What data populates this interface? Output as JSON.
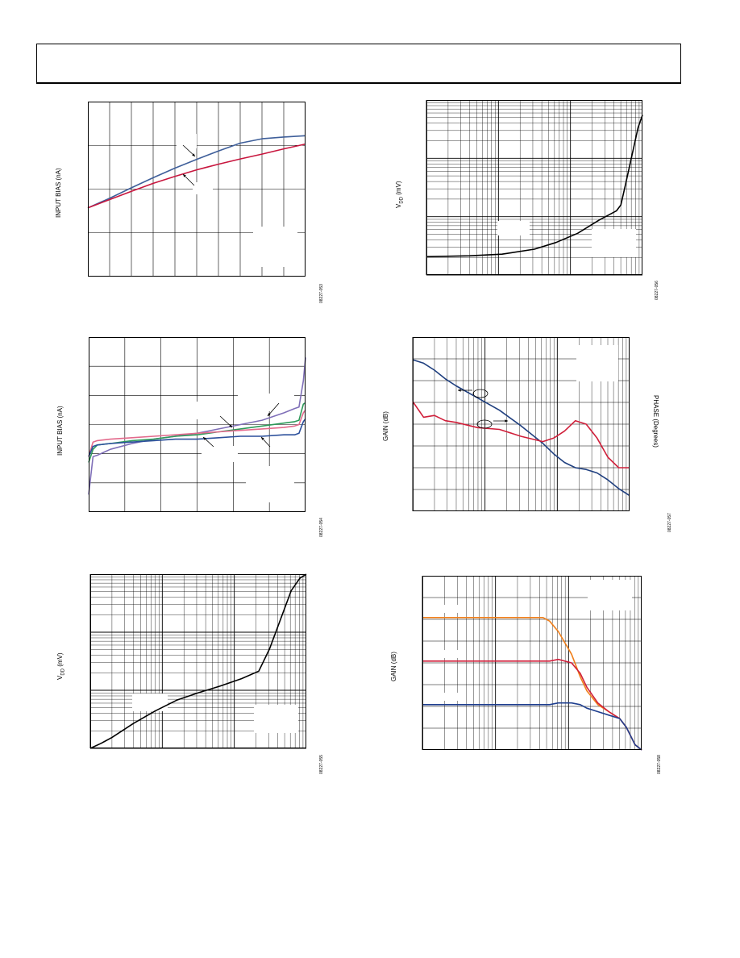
{
  "chart_data": [
    {
      "id": "c1",
      "type": "line",
      "ylabel": "INPUT BIAS (nA)",
      "figure_id": "08227-053",
      "grid": {
        "x_divisions": 10,
        "y_divisions": 4
      },
      "x": [
        0,
        0.1,
        0.2,
        0.3,
        0.4,
        0.5,
        0.6,
        0.7,
        0.8,
        0.9,
        1.0
      ],
      "series": [
        {
          "color": "#3f5f9a",
          "values": [
            1.57,
            1.79,
            2.03,
            2.26,
            2.48,
            2.68,
            2.87,
            3.05,
            3.15,
            3.19,
            3.22
          ]
        },
        {
          "color": "#c8163e",
          "values": [
            1.57,
            1.76,
            1.95,
            2.13,
            2.29,
            2.44,
            2.57,
            2.69,
            2.8,
            2.92,
            3.03
          ]
        }
      ]
    },
    {
      "id": "c2",
      "type": "line",
      "ylabel": "INPUT BIAS (nA)",
      "figure_id": "08227-054",
      "grid": {
        "x_divisions": 6,
        "y_divisions": 6
      },
      "x": [
        0,
        0.02,
        0.04,
        0.1,
        0.2,
        0.3,
        0.4,
        0.5,
        0.6,
        0.7,
        0.8,
        0.9,
        0.95,
        0.97,
        0.99,
        1.0
      ],
      "series": [
        {
          "color": "#7f6fb8",
          "values": [
            0.6,
            1.9,
            1.95,
            2.15,
            2.35,
            2.5,
            2.6,
            2.7,
            2.85,
            3.0,
            3.15,
            3.4,
            3.55,
            3.6,
            4.5,
            5.3
          ]
        },
        {
          "color": "#2e9a5a",
          "values": [
            1.7,
            2.15,
            2.3,
            2.35,
            2.45,
            2.5,
            2.6,
            2.65,
            2.75,
            2.85,
            2.95,
            3.05,
            3.1,
            3.15,
            3.7,
            3.75
          ]
        },
        {
          "color": "#e36a8c",
          "values": [
            1.9,
            2.4,
            2.45,
            2.5,
            2.55,
            2.6,
            2.65,
            2.7,
            2.75,
            2.8,
            2.85,
            2.9,
            2.95,
            3.0,
            3.4,
            3.5
          ]
        },
        {
          "color": "#2b4f9b",
          "values": [
            1.9,
            2.25,
            2.3,
            2.35,
            2.4,
            2.45,
            2.5,
            2.5,
            2.55,
            2.6,
            2.6,
            2.65,
            2.65,
            2.7,
            3.1,
            3.2
          ]
        }
      ]
    },
    {
      "id": "c3",
      "type": "line",
      "ylabel": "V",
      "ylabel_sub": "DD",
      "ylabel_unit": " (mV)",
      "figure_id": "08227-055",
      "y_scale": "log",
      "x": [
        0,
        0.05,
        0.1,
        0.2,
        0.3,
        0.4,
        0.5,
        0.6,
        0.7,
        0.78,
        0.83,
        0.88,
        0.93,
        0.97,
        1.0
      ],
      "series": [
        {
          "color": "#000000",
          "values": [
            0.0,
            0.06,
            0.13,
            0.3,
            0.45,
            0.58,
            0.67,
            0.75,
            0.84,
            0.93,
            1.2,
            1.55,
            1.9,
            2.05,
            2.1
          ]
        }
      ]
    },
    {
      "id": "c4",
      "type": "line",
      "ylabel": "V",
      "ylabel_sub": "DD",
      "ylabel_unit": " (mV)",
      "figure_id": "08227-056",
      "y_scale": "log",
      "x": [
        0,
        0.2,
        0.35,
        0.5,
        0.6,
        0.7,
        0.8,
        0.88,
        0.9,
        0.92,
        0.95,
        0.98,
        1.0
      ],
      "series": [
        {
          "color": "#000000",
          "values": [
            0.0,
            0.01,
            0.03,
            0.09,
            0.17,
            0.28,
            0.44,
            0.55,
            0.62,
            0.85,
            1.2,
            1.55,
            1.7
          ]
        }
      ]
    },
    {
      "id": "c5",
      "type": "line",
      "ylabel": "GAIN (dB)",
      "y2label": "PHASE (Degrees)",
      "figure_id": "08227-057",
      "x_scale": "log",
      "x": [
        0,
        0.05,
        0.1,
        0.15,
        0.2,
        0.3,
        0.4,
        0.5,
        0.6,
        0.65,
        0.7,
        0.75,
        0.8,
        0.85,
        0.9,
        0.95,
        1.0
      ],
      "series": [
        {
          "color": "#1f3f7f",
          "values": [
            0.87,
            0.85,
            0.81,
            0.76,
            0.72,
            0.65,
            0.58,
            0.49,
            0.39,
            0.33,
            0.28,
            0.25,
            0.24,
            0.22,
            0.18,
            0.13,
            0.09
          ]
        },
        {
          "color": "#d01f3a",
          "values": [
            0.63,
            0.54,
            0.55,
            0.52,
            0.51,
            0.48,
            0.47,
            0.43,
            0.4,
            0.42,
            0.46,
            0.52,
            0.5,
            0.42,
            0.31,
            0.25,
            0.25
          ]
        }
      ]
    },
    {
      "id": "c6",
      "type": "line",
      "ylabel": "GAIN (dB)",
      "figure_id": "08227-058",
      "x_scale": "log",
      "x": [
        0,
        0.2,
        0.4,
        0.55,
        0.58,
        0.62,
        0.68,
        0.72,
        0.75,
        0.8,
        0.85,
        0.9,
        0.93,
        0.95,
        0.97,
        1.0
      ],
      "series": [
        {
          "color": "#f07f1a",
          "values": [
            0.76,
            0.76,
            0.76,
            0.76,
            0.74,
            0.68,
            0.55,
            0.42,
            0.34,
            0.26,
            0.22,
            0.18,
            0.13,
            0.08,
            0.03,
            0.0
          ]
        },
        {
          "color": "#d01f3a",
          "values": [
            0.51,
            0.51,
            0.51,
            0.51,
            0.51,
            0.52,
            0.5,
            0.44,
            0.36,
            0.27,
            0.22,
            0.18,
            0.13,
            0.08,
            0.03,
            0.0
          ]
        },
        {
          "color": "#1f3f8f",
          "values": [
            0.26,
            0.26,
            0.26,
            0.26,
            0.26,
            0.27,
            0.27,
            0.26,
            0.24,
            0.22,
            0.2,
            0.18,
            0.13,
            0.08,
            0.03,
            0.0
          ]
        }
      ]
    }
  ]
}
